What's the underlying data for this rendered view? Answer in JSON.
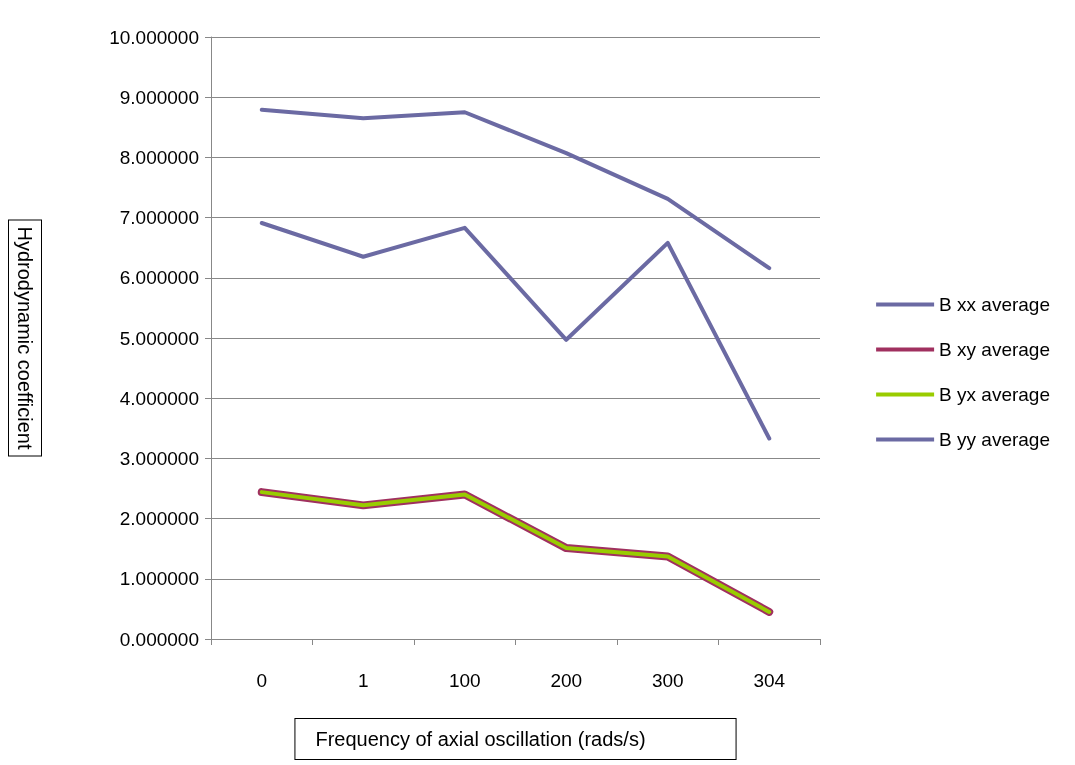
{
  "chart_data": {
    "type": "line",
    "xlabel": "Frequency of axial oscillation (rads/s)",
    "ylabel": "Hydrodynamic coefficient",
    "categories": [
      "0",
      "1",
      "100",
      "200",
      "300",
      "304"
    ],
    "series": [
      {
        "name": "B xx average",
        "color": "#6b6aa3",
        "values": [
          8.79,
          8.65,
          8.75,
          8.07,
          7.31,
          6.16
        ]
      },
      {
        "name": "B xy average",
        "color": "#a0305f",
        "values": [
          2.44,
          2.22,
          2.4,
          1.51,
          1.37,
          0.45
        ]
      },
      {
        "name": "B yx average",
        "color": "#99cc00",
        "values": [
          2.44,
          2.22,
          2.4,
          1.51,
          1.37,
          0.45
        ]
      },
      {
        "name": "B yy average",
        "color": "#6b6aa3",
        "values": [
          6.91,
          6.35,
          6.83,
          4.97,
          6.58,
          3.33
        ]
      }
    ],
    "ylim": [
      0,
      10
    ],
    "yticks": [
      {
        "value": 0,
        "label": "0.000000"
      },
      {
        "value": 1,
        "label": "1.000000"
      },
      {
        "value": 2,
        "label": "2.000000"
      },
      {
        "value": 3,
        "label": "3.000000"
      },
      {
        "value": 4,
        "label": "4.000000"
      },
      {
        "value": 5,
        "label": "5.000000"
      },
      {
        "value": 6,
        "label": "6.000000"
      },
      {
        "value": 7,
        "label": "7.000000"
      },
      {
        "value": 8,
        "label": "8.000000"
      },
      {
        "value": 9,
        "label": "9.000000"
      },
      {
        "value": 10,
        "label": "10.000000"
      }
    ],
    "grid": "y",
    "legend": "right",
    "marker": "none",
    "line_style": "solid"
  }
}
